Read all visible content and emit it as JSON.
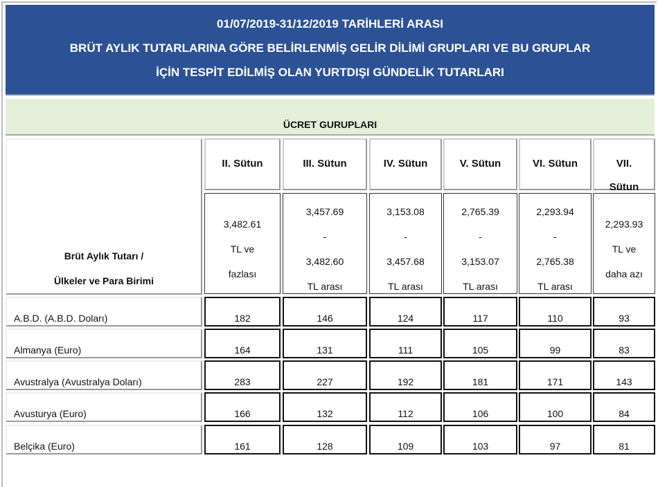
{
  "title": {
    "line1": "01/07/2019-31/12/2019 TARİHLERİ ARASI",
    "line2": "BRÜT AYLIK TUTARLARINA GÖRE BELİRLENMİŞ GELİR DİLİMİ GRUPLARI VE BU GRUPLAR",
    "line3": "İÇİN TESPİT EDİLMİŞ OLAN YURTDIŞI GÜNDELİK TUTARLARI"
  },
  "group_header": "ÜCRET GURUPLARI",
  "row_header": {
    "line1": "Brüt Aylık Tutarı /",
    "line2": "Ülkeler ve Para Birimi"
  },
  "columns": [
    {
      "name": [
        "II. Sütun"
      ],
      "range": [
        "3,482.61",
        "TL ve",
        "fazlası"
      ]
    },
    {
      "name": [
        "III. Sütun"
      ],
      "range": [
        "3,457.69",
        "-",
        "3,482.60",
        "TL arası"
      ]
    },
    {
      "name": [
        "IV. Sütun"
      ],
      "range": [
        "3,153.08",
        "-",
        "3,457.68",
        "TL arası"
      ]
    },
    {
      "name": [
        "V. Sütun"
      ],
      "range": [
        "2,765.39",
        "-",
        "3,153.07",
        "TL arası"
      ]
    },
    {
      "name": [
        "VI. Sütun"
      ],
      "range": [
        "2,293.94",
        "-",
        "2,765.38",
        "TL arası"
      ]
    },
    {
      "name": [
        "VII.",
        "Sütun"
      ],
      "range": [
        "2,293.93",
        "TL ve",
        "daha azı"
      ]
    }
  ],
  "rows": [
    {
      "country": "A.B.D. (A.B.D. Doları)",
      "values": [
        "182",
        "146",
        "124",
        "117",
        "110",
        "93"
      ]
    },
    {
      "country": "Almanya (Euro)",
      "values": [
        "164",
        "131",
        "111",
        "105",
        "99",
        "83"
      ]
    },
    {
      "country": "Avustralya (Avustralya Doları)",
      "values": [
        "283",
        "227",
        "192",
        "181",
        "171",
        "143"
      ]
    },
    {
      "country": "Avusturya (Euro)",
      "values": [
        "166",
        "132",
        "112",
        "106",
        "100",
        "84"
      ]
    },
    {
      "country": "Belçika (Euro)",
      "values": [
        "161",
        "128",
        "109",
        "103",
        "97",
        "81"
      ]
    }
  ]
}
